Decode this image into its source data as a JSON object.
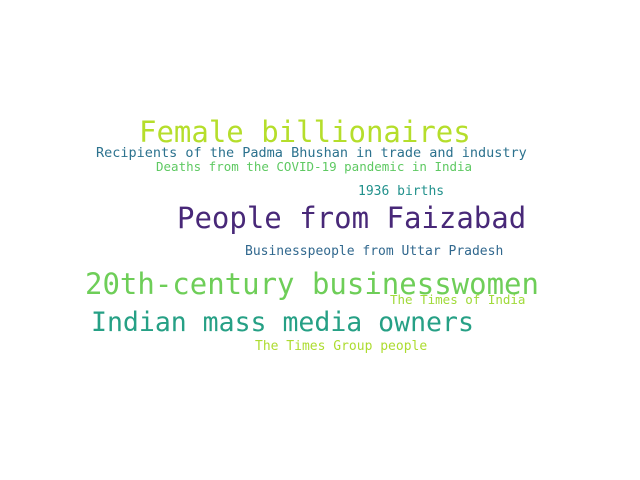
{
  "words": [
    {
      "key": "female",
      "text": "Female billionaires",
      "color": "#b5de2b"
    },
    {
      "key": "padma",
      "text": "Recipients of the Padma Bhushan in trade and industry",
      "color": "#2c728e"
    },
    {
      "key": "covid",
      "text": "Deaths from the COVID-19 pandemic in India",
      "color": "#5ec962"
    },
    {
      "key": "births_1936",
      "text": "1936 births",
      "color": "#21918c"
    },
    {
      "key": "faizabad",
      "text": "People from Faizabad",
      "color": "#482878"
    },
    {
      "key": "up",
      "text": "Businesspeople from Uttar Pradesh",
      "color": "#31688e"
    },
    {
      "key": "c20th",
      "text": "20th-century businesswomen",
      "color": "#6ece58"
    },
    {
      "key": "toi",
      "text": "The Times of India",
      "color": "#a0da39"
    },
    {
      "key": "media",
      "text": "Indian mass media owners",
      "color": "#26a085"
    },
    {
      "key": "times_group",
      "text": "The Times Group people",
      "color": "#addc30"
    }
  ]
}
